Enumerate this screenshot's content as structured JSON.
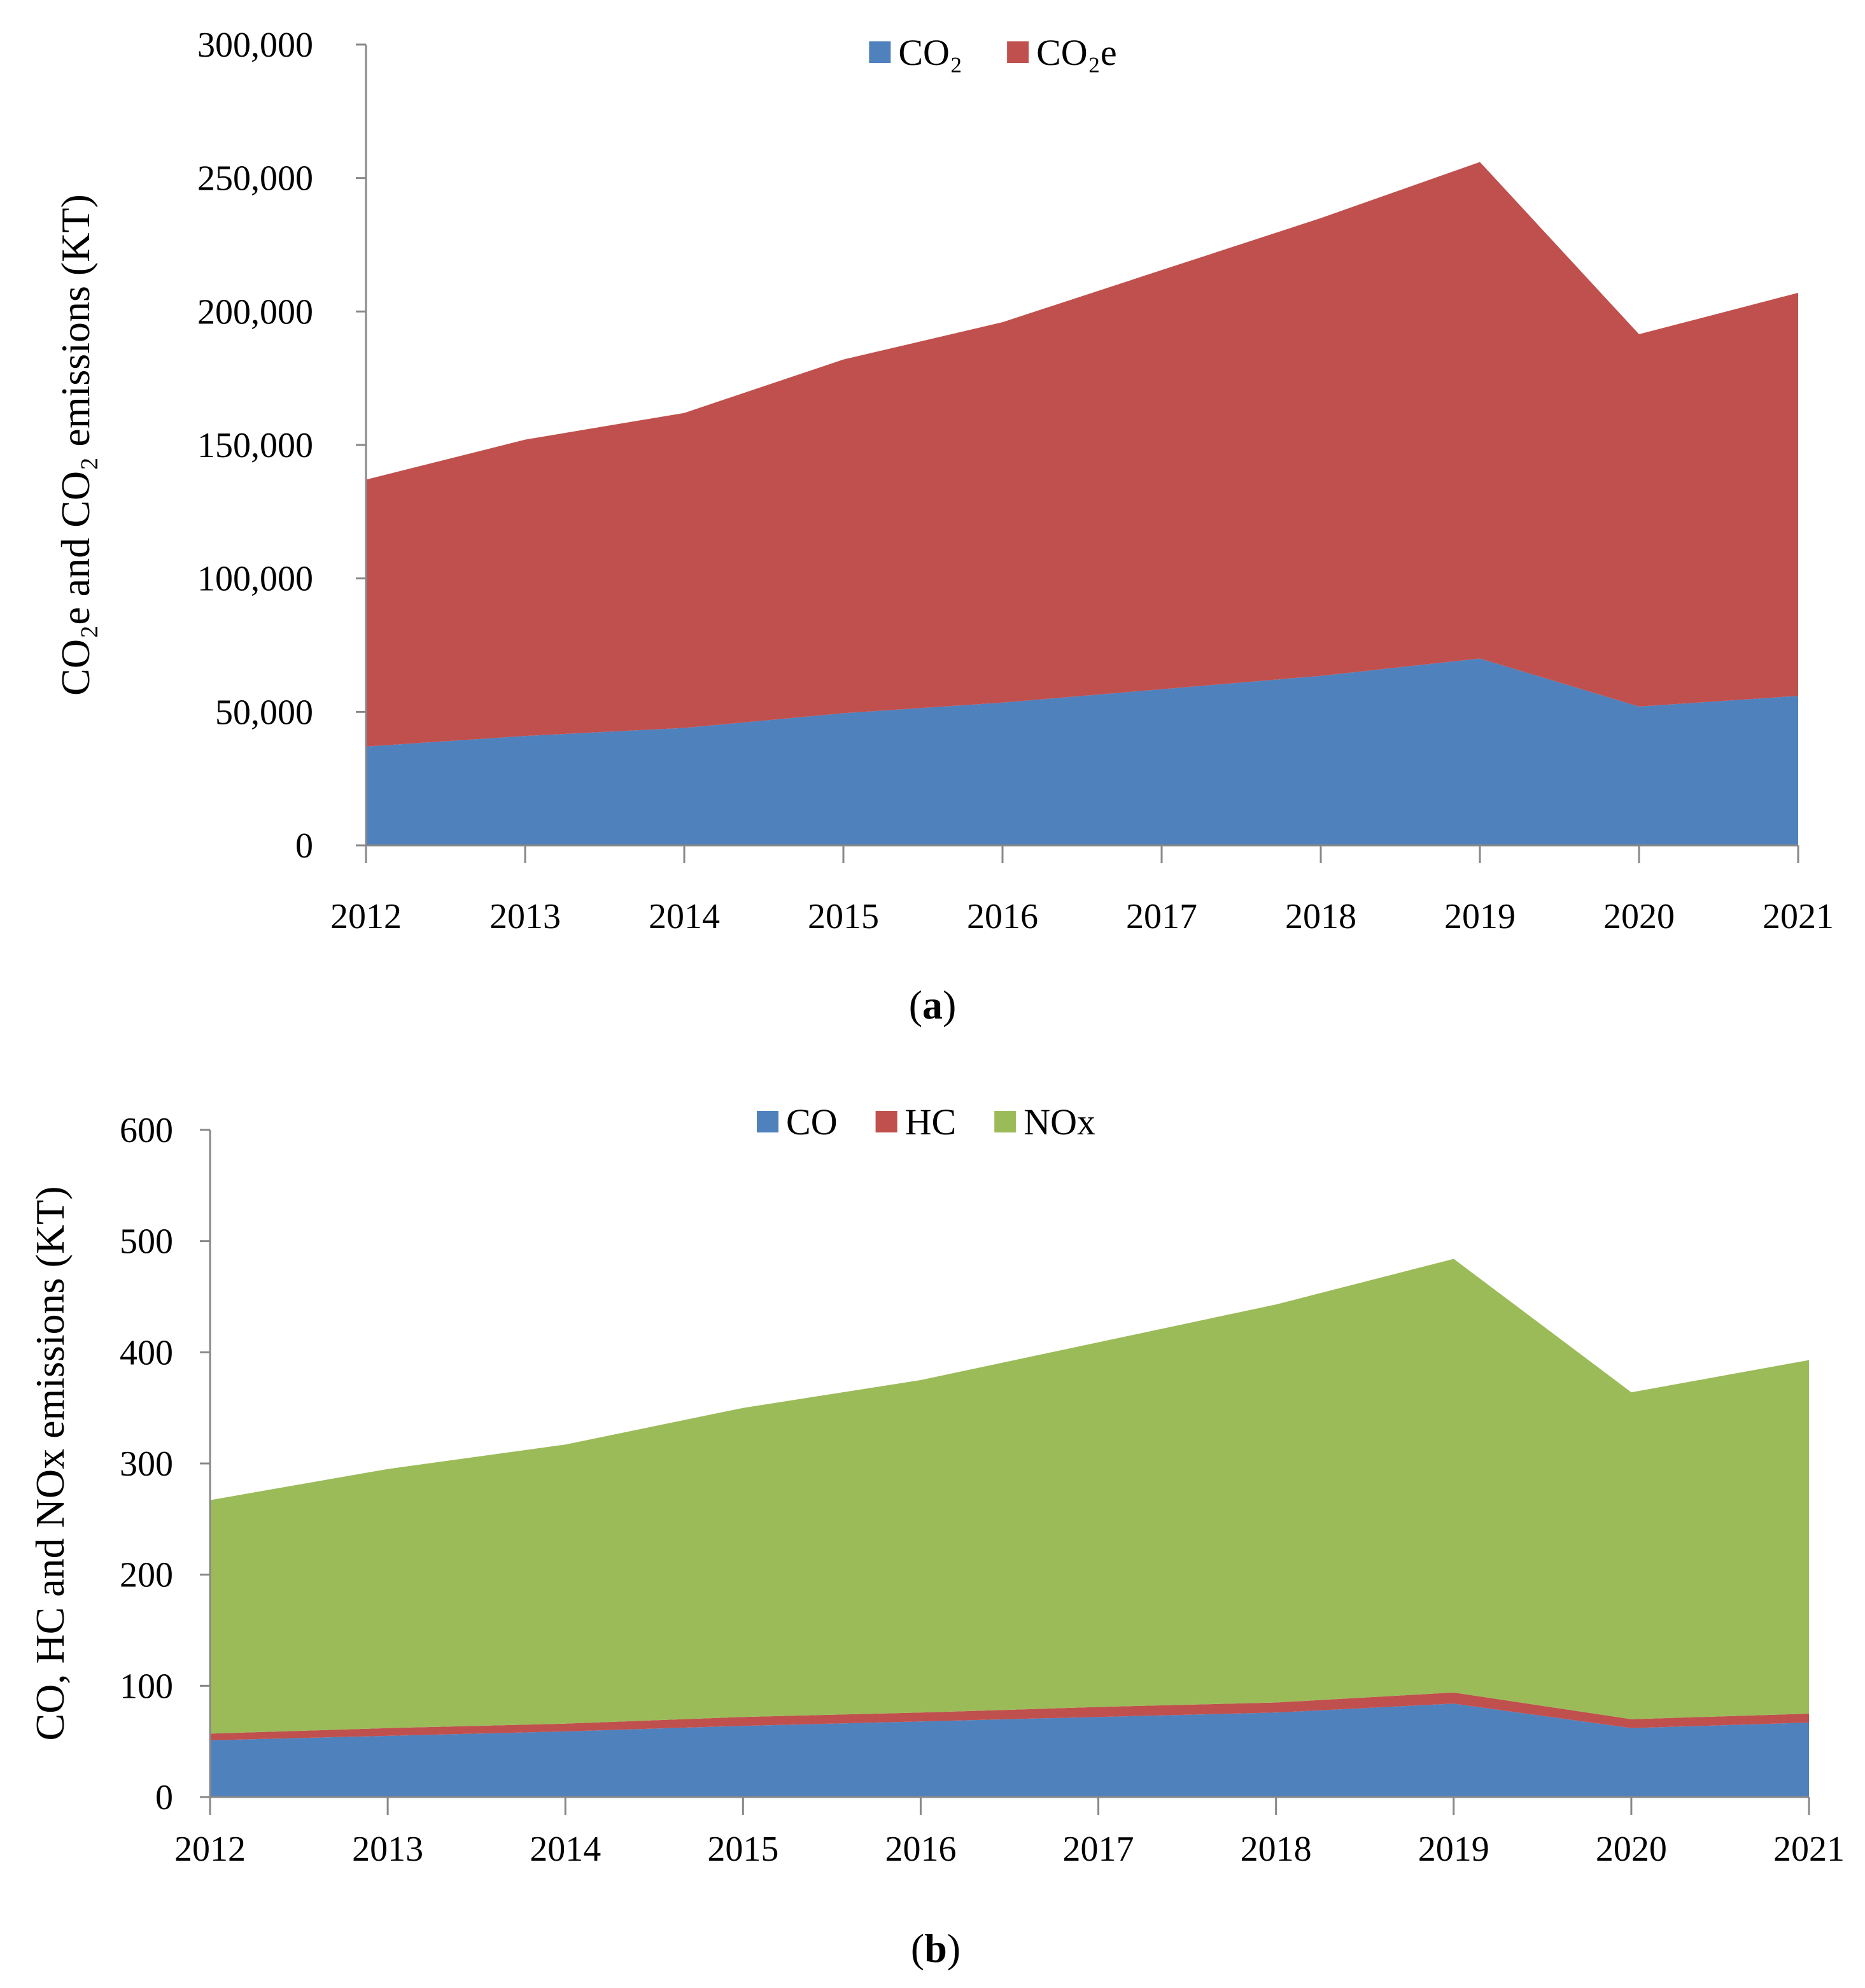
{
  "chart_data": [
    {
      "type": "area",
      "stacked": true,
      "panel_label": "a",
      "x": [
        "2012",
        "2013",
        "2014",
        "2015",
        "2016",
        "2017",
        "2018",
        "2019",
        "2020",
        "2021"
      ],
      "ylabel": "CO₂e and CO₂ emissions (KT)",
      "ylim": [
        0,
        300000
      ],
      "yticks": [
        "0",
        "50,000",
        "100,000",
        "150,000",
        "200,000",
        "250,000",
        "300,000"
      ],
      "grid": false,
      "legend_position": "top-center",
      "series": [
        {
          "name": "CO₂",
          "color": "#4F81BD",
          "values": [
            37000,
            41000,
            44000,
            49500,
            53500,
            58500,
            63500,
            70000,
            52000,
            56000
          ]
        },
        {
          "name": "CO₂e",
          "color": "#C0504D",
          "values": [
            100000,
            111000,
            118000,
            132500,
            142500,
            157000,
            171500,
            186000,
            139500,
            151000
          ]
        }
      ]
    },
    {
      "type": "area",
      "stacked": true,
      "panel_label": "b",
      "x": [
        "2012",
        "2013",
        "2014",
        "2015",
        "2016",
        "2017",
        "2018",
        "2019",
        "2020",
        "2021"
      ],
      "ylabel": "CO, HC and NOx emissions (KT)",
      "ylim": [
        0,
        600
      ],
      "yticks": [
        "0",
        "100",
        "200",
        "300",
        "400",
        "500",
        "600"
      ],
      "grid": false,
      "legend_position": "top-center",
      "series": [
        {
          "name": "CO",
          "color": "#4F81BD",
          "values": [
            51,
            55,
            59,
            64,
            68,
            72,
            76,
            84,
            62,
            67
          ]
        },
        {
          "name": "HC",
          "color": "#C0504D",
          "values": [
            6,
            7,
            7,
            8,
            8,
            9,
            9,
            10,
            8,
            8
          ]
        },
        {
          "name": "NOx",
          "color": "#9BBB59",
          "values": [
            210,
            233,
            251,
            278,
            299,
            328,
            358,
            390,
            294,
            318
          ]
        }
      ]
    }
  ]
}
